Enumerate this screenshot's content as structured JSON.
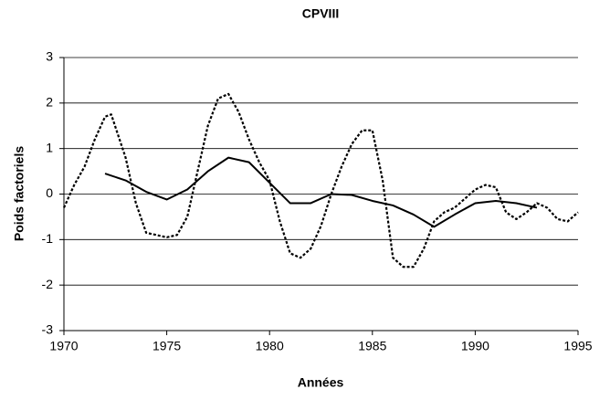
{
  "chart_data": {
    "type": "line",
    "title": "CPVIII",
    "x_label": "Années",
    "y_label": "Poids factoriels",
    "xlim": [
      1970,
      1995
    ],
    "xticks": [
      1970,
      1975,
      1980,
      1985,
      1990,
      1995
    ],
    "ylim": [
      -3,
      3
    ],
    "yticks": [
      -3,
      -2,
      -1,
      0,
      1,
      2,
      3
    ],
    "grid": true,
    "series": [
      {
        "color": "#000000",
        "style": "dotted",
        "x": [
          1970,
          1970.5,
          1971,
          1971.5,
          1972,
          1972.3,
          1973,
          1973.5,
          1974,
          1975,
          1975.5,
          1976,
          1976.5,
          1977,
          1977.5,
          1978,
          1978.5,
          1979,
          1979.5,
          1980,
          1980.5,
          1981,
          1981.5,
          1982,
          1982.5,
          1983,
          1983.5,
          1984,
          1984.5,
          1985,
          1985.5,
          1986,
          1986.5,
          1987,
          1987.5,
          1988,
          1988.5,
          1989,
          1989.5,
          1990,
          1990.5,
          1991,
          1991.5,
          1992,
          1992.5,
          1993,
          1993.5,
          1994,
          1994.5,
          1995
        ],
        "values": [
          -0.3,
          0.2,
          0.6,
          1.2,
          1.7,
          1.75,
          0.8,
          -0.2,
          -0.85,
          -0.95,
          -0.9,
          -0.5,
          0.5,
          1.5,
          2.1,
          2.2,
          1.8,
          1.2,
          0.7,
          0.3,
          -0.6,
          -1.3,
          -1.4,
          -1.2,
          -0.7,
          0,
          0.6,
          1.1,
          1.4,
          1.4,
          0.3,
          -1.4,
          -1.6,
          -1.6,
          -1.2,
          -0.6,
          -0.4,
          -0.3,
          -0.1,
          0.1,
          0.2,
          0.15,
          -0.4,
          -0.55,
          -0.4,
          -0.2,
          -0.3,
          -0.55,
          -0.6,
          -0.4
        ]
      },
      {
        "color": "#000000",
        "style": "solid",
        "x": [
          1972,
          1973,
          1974,
          1975,
          1976,
          1977,
          1978,
          1979,
          1980,
          1981,
          1982,
          1983,
          1984,
          1985,
          1986,
          1987,
          1988,
          1989,
          1990,
          1991,
          1992,
          1993
        ],
        "values": [
          0.45,
          0.3,
          0.05,
          -0.12,
          0.1,
          0.5,
          0.8,
          0.7,
          0.25,
          -0.2,
          -0.2,
          0.0,
          -0.02,
          -0.15,
          -0.25,
          -0.45,
          -0.72,
          -0.45,
          -0.2,
          -0.15,
          -0.2,
          -0.3
        ]
      }
    ]
  }
}
